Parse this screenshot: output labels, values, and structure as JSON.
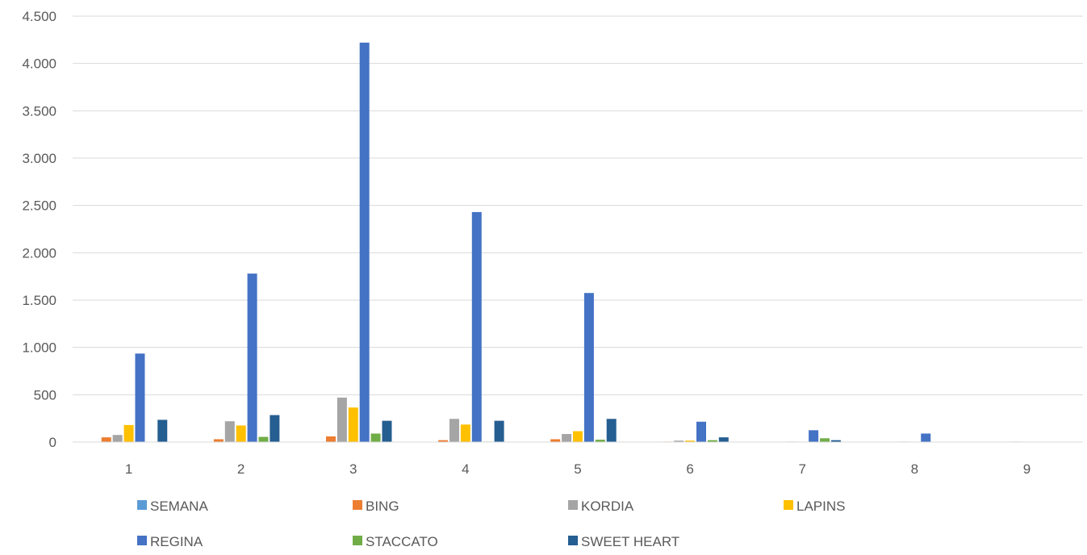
{
  "chart_data": {
    "type": "bar",
    "title": "",
    "xlabel": "",
    "ylabel": "",
    "ylim": [
      0,
      4500
    ],
    "y_ticks": [
      {
        "value": 0,
        "label": "0"
      },
      {
        "value": 500,
        "label": "500"
      },
      {
        "value": 1000,
        "label": "1.000"
      },
      {
        "value": 1500,
        "label": "1.500"
      },
      {
        "value": 2000,
        "label": "2.000"
      },
      {
        "value": 2500,
        "label": "2.500"
      },
      {
        "value": 3000,
        "label": "3.000"
      },
      {
        "value": 3500,
        "label": "3.500"
      },
      {
        "value": 4000,
        "label": "4.000"
      },
      {
        "value": 4500,
        "label": "4.500"
      }
    ],
    "grid": true,
    "legend_position": "bottom",
    "categories": [
      "1",
      "2",
      "3",
      "4",
      "5",
      "6",
      "7",
      "8",
      "9"
    ],
    "series": [
      {
        "name": "SEMANA",
        "color": "#5b9bd5",
        "values": [
          0,
          0,
          0,
          0,
          0,
          0,
          0,
          0,
          0
        ]
      },
      {
        "name": "BING",
        "color": "#ed7d31",
        "values": [
          50,
          30,
          60,
          20,
          30,
          5,
          0,
          0,
          0
        ]
      },
      {
        "name": "KORDIA",
        "color": "#a5a5a5",
        "values": [
          75,
          220,
          470,
          245,
          85,
          15,
          5,
          5,
          5
        ]
      },
      {
        "name": "LAPINS",
        "color": "#ffc000",
        "values": [
          180,
          175,
          365,
          185,
          115,
          15,
          0,
          0,
          0
        ]
      },
      {
        "name": "REGINA",
        "color": "#4472c4",
        "values": [
          935,
          1780,
          4220,
          2430,
          1575,
          215,
          125,
          90,
          0
        ]
      },
      {
        "name": "STACCATO",
        "color": "#70ad47",
        "values": [
          0,
          55,
          90,
          5,
          25,
          20,
          40,
          0,
          0
        ]
      },
      {
        "name": "SWEET HEART",
        "color": "#255e91",
        "values": [
          235,
          285,
          225,
          225,
          245,
          50,
          20,
          0,
          0
        ]
      }
    ]
  }
}
